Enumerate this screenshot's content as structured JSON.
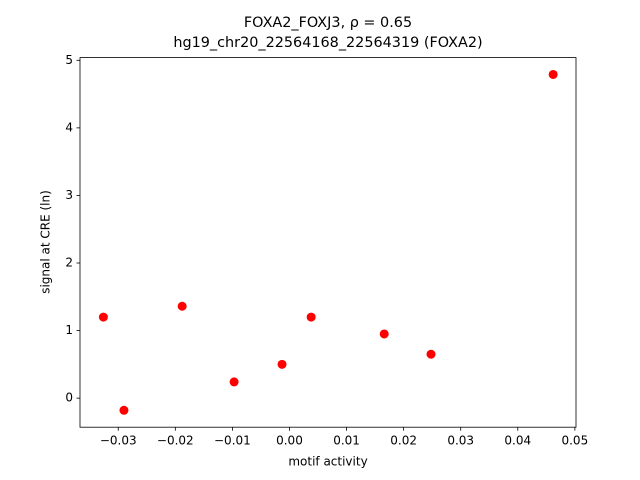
{
  "chart_data": {
    "type": "scatter",
    "title": "FOXA2_FOXJ3, ρ = 0.65",
    "subtitle": "hg19_chr20_22564168_22564319 (FOXA2)",
    "x_label": "motif activity",
    "y_label": "signal at CRE (ln)",
    "color": "#ff0000",
    "x": [
      -0.0326,
      -0.029,
      -0.0188,
      -0.0097,
      -0.0013,
      0.0038,
      0.0166,
      0.0248,
      0.0462
    ],
    "values": [
      1.2,
      -0.18,
      1.36,
      0.24,
      0.5,
      1.2,
      0.95,
      0.65,
      4.79
    ],
    "xlim": [
      -0.0367,
      0.0502
    ],
    "ylim": [
      -0.43,
      5.04
    ],
    "xticks": [
      {
        "value": -0.03,
        "label": "−0.03"
      },
      {
        "value": -0.02,
        "label": "−0.02"
      },
      {
        "value": -0.01,
        "label": "−0.01"
      },
      {
        "value": 0,
        "label": "0.00"
      },
      {
        "value": 0.01,
        "label": "0.01"
      },
      {
        "value": 0.02,
        "label": "0.02"
      },
      {
        "value": 0.03,
        "label": "0.03"
      },
      {
        "value": 0.04,
        "label": "0.04"
      },
      {
        "value": 0.05,
        "label": "0.05"
      }
    ],
    "yticks": [
      0,
      1,
      2,
      3,
      4,
      5
    ]
  }
}
